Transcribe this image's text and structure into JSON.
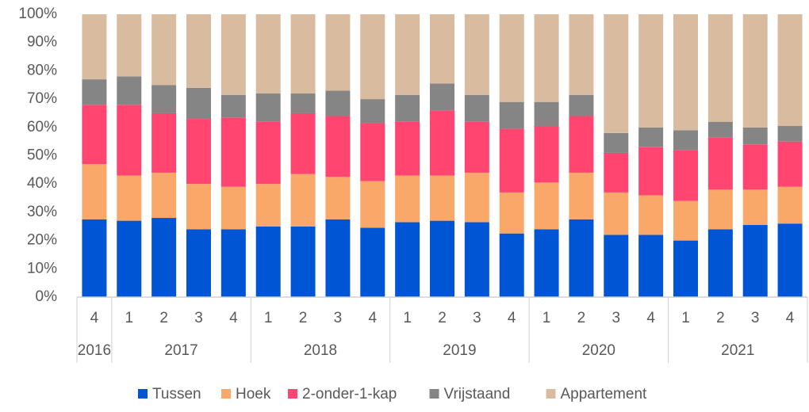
{
  "chart_data": {
    "type": "stacked_bar_percent",
    "categories": [
      "4",
      "1",
      "2",
      "3",
      "4",
      "1",
      "2",
      "3",
      "4",
      "1",
      "2",
      "3",
      "4",
      "1",
      "2",
      "3",
      "4",
      "1",
      "2",
      "3",
      "4"
    ],
    "groups": [
      {
        "label": "2016",
        "size": 1
      },
      {
        "label": "2017",
        "size": 4
      },
      {
        "label": "2018",
        "size": 4
      },
      {
        "label": "2019",
        "size": 4
      },
      {
        "label": "2020",
        "size": 4
      },
      {
        "label": "2021",
        "size": 4
      }
    ],
    "series": [
      {
        "name": "Tussen",
        "color": "#0055d4",
        "values": [
          27.5,
          27,
          28,
          24,
          24,
          25,
          25,
          27.5,
          24.5,
          26.5,
          27,
          26.5,
          22.5,
          24,
          27.5,
          22,
          22,
          20,
          24,
          25.5,
          26
        ]
      },
      {
        "name": "Hoek",
        "color": "#f9a86a",
        "values": [
          19.5,
          16,
          16,
          16,
          15,
          15,
          18.5,
          15,
          16.5,
          16.5,
          16,
          17.5,
          14.5,
          16.5,
          16.5,
          15,
          14,
          14,
          14,
          12.5,
          13
        ]
      },
      {
        "name": "2-onder-1-kap",
        "color": "#ff4570",
        "values": [
          21,
          25,
          21,
          23,
          24.5,
          22,
          21.5,
          21.5,
          20.5,
          19,
          23,
          18,
          22.5,
          20,
          20,
          14,
          17,
          18,
          18.5,
          16,
          16
        ]
      },
      {
        "name": "Vrijstaand",
        "color": "#858585",
        "values": [
          9,
          10,
          10,
          11,
          8,
          10,
          7,
          9,
          8.5,
          9.5,
          9.5,
          9.5,
          9.5,
          8.5,
          7.5,
          7,
          7,
          7,
          5.5,
          6,
          5.5
        ]
      },
      {
        "name": "Appartement",
        "color": "#d9bca0",
        "values": [
          23,
          22,
          25,
          26,
          28.5,
          28,
          28,
          27,
          30,
          28.5,
          24.5,
          28.5,
          31,
          31,
          28.5,
          42,
          40,
          41,
          38,
          40,
          39.5
        ]
      }
    ],
    "ylim": [
      0,
      100
    ],
    "yticks": [
      {
        "value": 0,
        "label": "0%"
      },
      {
        "value": 10,
        "label": "10%"
      },
      {
        "value": 20,
        "label": "20%"
      },
      {
        "value": 30,
        "label": "30%"
      },
      {
        "value": 40,
        "label": "40%"
      },
      {
        "value": 50,
        "label": "50%"
      },
      {
        "value": 60,
        "label": "60%"
      },
      {
        "value": 70,
        "label": "70%"
      },
      {
        "value": 80,
        "label": "80%"
      },
      {
        "value": 90,
        "label": "90%"
      },
      {
        "value": 100,
        "label": "100%"
      }
    ],
    "legend": "bottom"
  }
}
